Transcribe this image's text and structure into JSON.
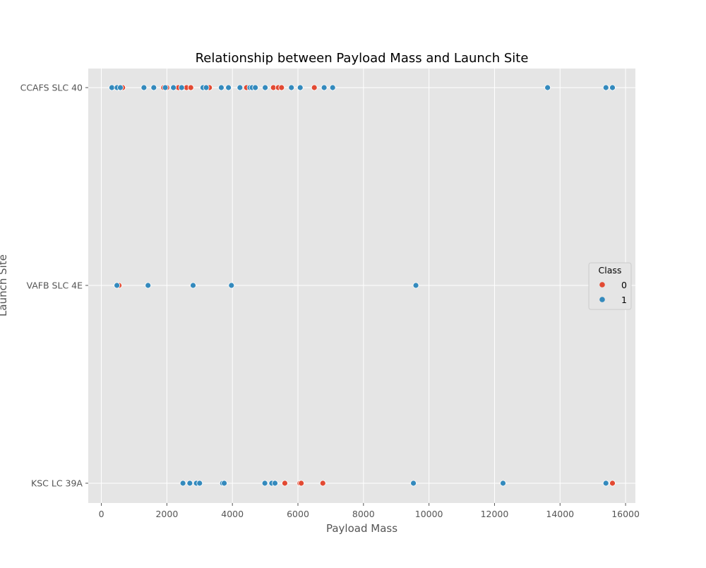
{
  "chart_data": {
    "type": "scatter",
    "title": "Relationship between Payload Mass and Launch Site",
    "xlabel": "Payload Mass",
    "ylabel": "Launch Site",
    "xlim": [
      -400,
      16300
    ],
    "x_ticks": [
      0,
      2000,
      4000,
      6000,
      8000,
      10000,
      12000,
      14000,
      16000
    ],
    "x_tick_labels": [
      "0",
      "2000",
      "4000",
      "6000",
      "8000",
      "10000",
      "12000",
      "14000",
      "16000"
    ],
    "categories": [
      "CCAFS SLC 40",
      "VAFB SLC 4E",
      "KSC LC 39A"
    ],
    "grid": true,
    "legend": {
      "title": "Class",
      "placement": "center-right"
    },
    "colors": {
      "0": "#e24a33",
      "1": "#348abd",
      "background": "#e5e5e5",
      "grid": "#ffffff"
    },
    "series": [
      {
        "name": "0",
        "points": [
          {
            "x": 520,
            "y": "CCAFS SLC 40"
          },
          {
            "x": 650,
            "y": "CCAFS SLC 40"
          },
          {
            "x": 1900,
            "y": "CCAFS SLC 40"
          },
          {
            "x": 2000,
            "y": "CCAFS SLC 40"
          },
          {
            "x": 2350,
            "y": "CCAFS SLC 40"
          },
          {
            "x": 2480,
            "y": "CCAFS SLC 40"
          },
          {
            "x": 2600,
            "y": "CCAFS SLC 40"
          },
          {
            "x": 2730,
            "y": "CCAFS SLC 40"
          },
          {
            "x": 3300,
            "y": "CCAFS SLC 40"
          },
          {
            "x": 4430,
            "y": "CCAFS SLC 40"
          },
          {
            "x": 5250,
            "y": "CCAFS SLC 40"
          },
          {
            "x": 5400,
            "y": "CCAFS SLC 40"
          },
          {
            "x": 5500,
            "y": "CCAFS SLC 40"
          },
          {
            "x": 6500,
            "y": "CCAFS SLC 40"
          },
          {
            "x": 540,
            "y": "VAFB SLC 4E"
          },
          {
            "x": 5600,
            "y": "KSC LC 39A"
          },
          {
            "x": 6060,
            "y": "KSC LC 39A"
          },
          {
            "x": 6100,
            "y": "KSC LC 39A"
          },
          {
            "x": 6760,
            "y": "KSC LC 39A"
          },
          {
            "x": 15600,
            "y": "KSC LC 39A"
          }
        ]
      },
      {
        "name": "1",
        "points": [
          {
            "x": 320,
            "y": "CCAFS SLC 40"
          },
          {
            "x": 480,
            "y": "CCAFS SLC 40"
          },
          {
            "x": 580,
            "y": "CCAFS SLC 40"
          },
          {
            "x": 1300,
            "y": "CCAFS SLC 40"
          },
          {
            "x": 1600,
            "y": "CCAFS SLC 40"
          },
          {
            "x": 1950,
            "y": "CCAFS SLC 40"
          },
          {
            "x": 2200,
            "y": "CCAFS SLC 40"
          },
          {
            "x": 2450,
            "y": "CCAFS SLC 40"
          },
          {
            "x": 3100,
            "y": "CCAFS SLC 40"
          },
          {
            "x": 3200,
            "y": "CCAFS SLC 40"
          },
          {
            "x": 3660,
            "y": "CCAFS SLC 40"
          },
          {
            "x": 3880,
            "y": "CCAFS SLC 40"
          },
          {
            "x": 4230,
            "y": "CCAFS SLC 40"
          },
          {
            "x": 4535,
            "y": "CCAFS SLC 40"
          },
          {
            "x": 4600,
            "y": "CCAFS SLC 40"
          },
          {
            "x": 4700,
            "y": "CCAFS SLC 40"
          },
          {
            "x": 5000,
            "y": "CCAFS SLC 40"
          },
          {
            "x": 5800,
            "y": "CCAFS SLC 40"
          },
          {
            "x": 6070,
            "y": "CCAFS SLC 40"
          },
          {
            "x": 6800,
            "y": "CCAFS SLC 40"
          },
          {
            "x": 7060,
            "y": "CCAFS SLC 40"
          },
          {
            "x": 13620,
            "y": "CCAFS SLC 40"
          },
          {
            "x": 15400,
            "y": "CCAFS SLC 40"
          },
          {
            "x": 15600,
            "y": "CCAFS SLC 40"
          },
          {
            "x": 475,
            "y": "VAFB SLC 4E"
          },
          {
            "x": 1425,
            "y": "VAFB SLC 4E"
          },
          {
            "x": 2800,
            "y": "VAFB SLC 4E"
          },
          {
            "x": 3970,
            "y": "VAFB SLC 4E"
          },
          {
            "x": 9600,
            "y": "VAFB SLC 4E"
          },
          {
            "x": 2490,
            "y": "KSC LC 39A"
          },
          {
            "x": 2700,
            "y": "KSC LC 39A"
          },
          {
            "x": 2900,
            "y": "KSC LC 39A"
          },
          {
            "x": 3000,
            "y": "KSC LC 39A"
          },
          {
            "x": 3700,
            "y": "KSC LC 39A"
          },
          {
            "x": 3750,
            "y": "KSC LC 39A"
          },
          {
            "x": 4990,
            "y": "KSC LC 39A"
          },
          {
            "x": 5200,
            "y": "KSC LC 39A"
          },
          {
            "x": 5300,
            "y": "KSC LC 39A"
          },
          {
            "x": 9525,
            "y": "KSC LC 39A"
          },
          {
            "x": 12260,
            "y": "KSC LC 39A"
          },
          {
            "x": 15400,
            "y": "KSC LC 39A"
          }
        ]
      }
    ]
  }
}
